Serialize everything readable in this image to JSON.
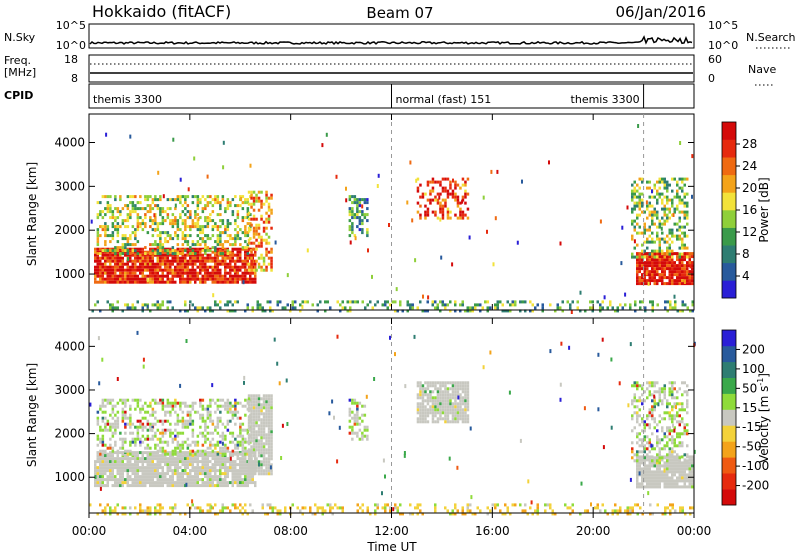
{
  "header": {
    "station": "Hokkaido (fitACF)",
    "beam": "Beam 07",
    "date": "06/Jan/2016"
  },
  "noise_panel": {
    "left_label": "N.Sky",
    "left_ticks": [
      "10^5",
      "10^0"
    ],
    "right_ticks": [
      "10^5",
      "10^0"
    ],
    "right_label": "N.Search",
    "legend_line_style": "dotted"
  },
  "freq_panel": {
    "left_label_line1": "Freq.",
    "left_label_line2": "[MHz]",
    "left_ticks": [
      "18",
      "8"
    ],
    "right_ticks": [
      "60",
      "0"
    ],
    "right_label": "Nave",
    "legend_line_style": "dotted"
  },
  "cpid_panel": {
    "label": "CPID",
    "modes": [
      {
        "text": "themis 3300",
        "start_hour": 0.0,
        "end_hour": 12.0
      },
      {
        "text": "normal (fast) 151",
        "start_hour": 12.0,
        "end_hour": 22.0
      },
      {
        "text": "themis 3300",
        "start_hour": 22.0,
        "end_hour": 24.0
      }
    ]
  },
  "x_axis": {
    "label": "Time UT",
    "tick_labels": [
      "00:00",
      "04:00",
      "08:00",
      "12:00",
      "16:00",
      "20:00",
      "00:00"
    ],
    "tick_hours": [
      0,
      4,
      8,
      12,
      16,
      20,
      24
    ],
    "range_hours": [
      0,
      24
    ]
  },
  "chart_data": [
    {
      "type": "heatmap",
      "name": "power",
      "title": "",
      "ylabel": "Slant Range [km]",
      "xlabel": "Time UT",
      "y_tick_labels": [
        "1000",
        "2000",
        "3000",
        "4000"
      ],
      "ylim_km": [
        180,
        4650
      ],
      "xlim_hours": [
        0,
        24
      ],
      "colorbar": {
        "label": "Power [dB]",
        "tick_labels": [
          "4",
          "8",
          "12",
          "16",
          "20",
          "24",
          "28"
        ],
        "colors": [
          "#2a1fd6",
          "#285a9c",
          "#2e7d72",
          "#3a9a4a",
          "#8fcf3a",
          "#f2e23a",
          "#f3a31a",
          "#ef6a12",
          "#e62a0e",
          "#d40a0a"
        ]
      },
      "regions": [
        {
          "t0": 0.2,
          "t1": 6.6,
          "r0": 800,
          "r1": 1600,
          "level": 0.9
        },
        {
          "t0": 0.3,
          "t1": 6.4,
          "r0": 1500,
          "r1": 2800,
          "level": 0.5
        },
        {
          "t0": 6.3,
          "t1": 7.2,
          "r0": 1100,
          "r1": 2900,
          "level": 0.65
        },
        {
          "t0": 10.3,
          "t1": 11.0,
          "r0": 1900,
          "r1": 2800,
          "level": 0.3
        },
        {
          "t0": 13.0,
          "t1": 15.0,
          "r0": 2300,
          "r1": 3200,
          "level": 0.8
        },
        {
          "t0": 21.7,
          "t1": 23.9,
          "r0": 800,
          "r1": 1500,
          "level": 0.92
        },
        {
          "t0": 21.5,
          "t1": 23.7,
          "r0": 1400,
          "r1": 3200,
          "level": 0.45
        },
        {
          "t0": 0.0,
          "t1": 24.0,
          "r0": 180,
          "r1": 400,
          "level": 0.35
        }
      ]
    },
    {
      "type": "heatmap",
      "name": "velocity",
      "title": "",
      "ylabel": "Slant Range [km]",
      "xlabel": "Time UT",
      "y_tick_labels": [
        "1000",
        "2000",
        "3000",
        "4000"
      ],
      "ylim_km": [
        180,
        4650
      ],
      "xlim_hours": [
        0,
        24
      ],
      "colorbar": {
        "label": "Velocity [m s^-1]",
        "tick_labels": [
          "200",
          "100",
          "50",
          "15",
          "-15",
          "-50",
          "-100",
          "-200"
        ],
        "colors": [
          "#2a1fd6",
          "#285a9c",
          "#2e7d72",
          "#3aa84a",
          "#8fdb3a",
          "#c8c8c0",
          "#f3d23a",
          "#f3a31a",
          "#ef5a12",
          "#e62a0e",
          "#d40a0a"
        ]
      },
      "regions": [
        {
          "t0": 0.2,
          "t1": 6.6,
          "r0": 800,
          "r1": 1600,
          "class": "ground"
        },
        {
          "t0": 0.3,
          "t1": 6.4,
          "r0": 1500,
          "r1": 2800,
          "class": "mixed"
        },
        {
          "t0": 6.3,
          "t1": 7.2,
          "r0": 1100,
          "r1": 2900,
          "class": "ground"
        },
        {
          "t0": 10.3,
          "t1": 11.0,
          "r0": 1900,
          "r1": 2800,
          "class": "mixed"
        },
        {
          "t0": 13.0,
          "t1": 15.0,
          "r0": 2300,
          "r1": 3200,
          "class": "ground"
        },
        {
          "t0": 21.7,
          "t1": 23.9,
          "r0": 800,
          "r1": 1500,
          "class": "ground"
        },
        {
          "t0": 21.5,
          "t1": 23.7,
          "r0": 1400,
          "r1": 3200,
          "class": "mixed"
        },
        {
          "t0": 0.0,
          "t1": 24.0,
          "r0": 180,
          "r1": 400,
          "class": "near"
        }
      ]
    }
  ]
}
